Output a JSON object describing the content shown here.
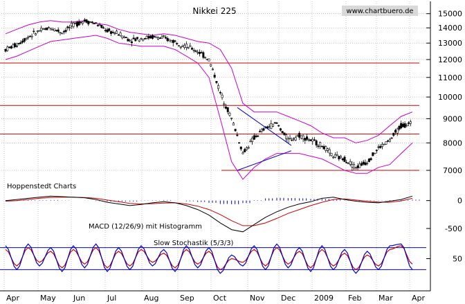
{
  "chart_data": {
    "type": "candlestick",
    "title": "Nikkei 225",
    "source": "www.chartbuero.de",
    "annotation": "Hoppenstedt Charts",
    "x_ticks": [
      "Apr",
      "May",
      "Jun",
      "Jul",
      "Aug",
      "Sep",
      "Oct",
      "Nov",
      "Dec",
      "2009",
      "Feb",
      "Mar",
      "Apr"
    ],
    "price_panel": {
      "y_ticks": [
        "15000",
        "14000",
        "13000",
        "12000",
        "11000",
        "10000",
        "9000",
        "8000",
        "7000"
      ],
      "ylim": [
        6500,
        15500
      ],
      "log_scale": true,
      "horizontal_lines": [
        11800,
        9600,
        8350,
        7000
      ],
      "trendlines": [
        {
          "from": {
            "x": "Oct",
            "y": 7000
          },
          "to": {
            "x": "Dec",
            "y": 7700
          }
        },
        {
          "from": {
            "x": "Oct",
            "y": 9500
          },
          "to": {
            "x": "Dec",
            "y": 7900
          }
        }
      ],
      "close_series": [
        12600,
        12900,
        13400,
        13800,
        14000,
        13700,
        14200,
        14500,
        14300,
        13800,
        13600,
        13200,
        13300,
        13400,
        13300,
        13100,
        12800,
        12500,
        12000,
        10200,
        9000,
        7600,
        8200,
        8600,
        8800,
        8100,
        8300,
        8100,
        7900,
        7500,
        7400,
        7100,
        7300,
        7800,
        8100,
        8700,
        8800
      ],
      "bollinger_upper": [
        13600,
        13900,
        14200,
        14400,
        14500,
        14400,
        14400,
        14500,
        14300,
        14200,
        13900,
        13700,
        13600,
        13500,
        13600,
        13500,
        13300,
        13100,
        13000,
        12600,
        11500,
        9700,
        9300,
        9300,
        9300,
        9100,
        8900,
        8700,
        8400,
        8200,
        8200,
        8000,
        8100,
        8300,
        8700,
        9100,
        9300
      ],
      "bollinger_lower": [
        12000,
        12200,
        12500,
        12800,
        13100,
        13200,
        13300,
        13400,
        13500,
        13300,
        13000,
        12900,
        12800,
        12800,
        12800,
        12600,
        12200,
        11800,
        11000,
        9000,
        7300,
        6700,
        7100,
        7400,
        7600,
        7600,
        7600,
        7500,
        7400,
        7200,
        7000,
        6900,
        6900,
        7100,
        7200,
        7600,
        8000
      ]
    },
    "macd_panel": {
      "label": "MACD (12/26/9) mit Histogramm",
      "y_ticks": [
        "0",
        "-500"
      ],
      "macd": [
        0,
        20,
        40,
        60,
        80,
        70,
        60,
        50,
        20,
        -30,
        -60,
        -90,
        -70,
        -40,
        -20,
        -40,
        -90,
        -160,
        -260,
        -400,
        -520,
        -560,
        -430,
        -300,
        -200,
        -120,
        -60,
        -20,
        40,
        60,
        20,
        -10,
        -30,
        -40,
        -10,
        20,
        80
      ],
      "signal": [
        -10,
        0,
        20,
        40,
        55,
        60,
        60,
        55,
        40,
        10,
        -20,
        -50,
        -60,
        -55,
        -45,
        -40,
        -60,
        -100,
        -160,
        -250,
        -360,
        -450,
        -450,
        -400,
        -320,
        -230,
        -160,
        -90,
        -30,
        20,
        30,
        10,
        -10,
        -25,
        -30,
        -5,
        40
      ]
    },
    "stochastic_panel": {
      "label": "Slow Stochastik (5/3/3)",
      "y_ticks": [
        "50"
      ],
      "overbought": 80,
      "oversold": 20,
      "k": [
        85,
        20,
        90,
        30,
        80,
        15,
        85,
        25,
        90,
        15,
        80,
        20,
        85,
        30,
        75,
        15,
        85,
        25,
        80,
        10,
        60,
        30,
        85,
        20,
        90,
        25,
        80,
        15,
        85,
        20,
        75,
        10,
        70,
        20,
        85,
        90,
        20
      ],
      "d": [
        75,
        30,
        80,
        40,
        70,
        25,
        75,
        35,
        80,
        25,
        70,
        30,
        75,
        40,
        65,
        25,
        75,
        35,
        70,
        20,
        50,
        40,
        75,
        30,
        80,
        35,
        70,
        25,
        75,
        30,
        65,
        20,
        60,
        30,
        75,
        85,
        35
      ]
    },
    "colors": {
      "candles": "#000000",
      "bollinger": "#cc00cc",
      "horizontal_lines": "#cc0000",
      "trendline": "#0000cc",
      "macd": "#000000",
      "signal": "#cc0000",
      "histogram": "#0000cc",
      "stoch_k": "#0000cc",
      "stoch_d": "#cc0000",
      "stoch_bounds": "#0000cc",
      "grid": "#999999"
    }
  }
}
